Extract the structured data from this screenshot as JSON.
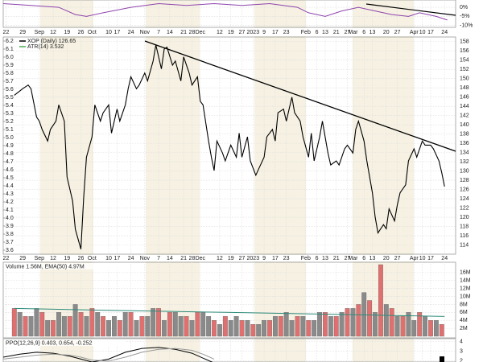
{
  "chart_data": [
    {
      "type": "line",
      "xlim": [
        0,
        163
      ],
      "ylim": [
        -11,
        4
      ],
      "yticks": [
        {
          "value": 0,
          "label": "0%"
        },
        {
          "value": -5,
          "label": "-5%"
        },
        {
          "value": -10,
          "label": "-10%"
        }
      ],
      "series": [
        {
          "color": "#8e44ad",
          "x": [
            0,
            10,
            20,
            26,
            30,
            36,
            46,
            56,
            66,
            76,
            86,
            96,
            106,
            110,
            116,
            122,
            128,
            134,
            140,
            146,
            150,
            156,
            160
          ],
          "values": [
            2,
            1,
            0,
            -4,
            -5,
            -3,
            0,
            2,
            1,
            2,
            1,
            2,
            0,
            -3,
            -5,
            -2,
            0,
            -2,
            -4,
            -5,
            -3,
            -5,
            -7
          ]
        }
      ]
    },
    {
      "type": "line",
      "xlim": [
        0,
        163
      ],
      "ylim": [
        112,
        159
      ],
      "y2lim": [
        3.55,
        6.25
      ],
      "xticks": [
        {
          "value": 1,
          "label": "22"
        },
        {
          "value": 7,
          "label": "29"
        },
        {
          "value": 13,
          "label": "Sep"
        },
        {
          "value": 18,
          "label": "12"
        },
        {
          "value": 23,
          "label": "19"
        },
        {
          "value": 28,
          "label": "26"
        },
        {
          "value": 32,
          "label": "Oct"
        },
        {
          "value": 38,
          "label": "10"
        },
        {
          "value": 41,
          "label": "17"
        },
        {
          "value": 46,
          "label": "24"
        },
        {
          "value": 51,
          "label": "Nov"
        },
        {
          "value": 56,
          "label": "7"
        },
        {
          "value": 60,
          "label": "14"
        },
        {
          "value": 65,
          "label": "21"
        },
        {
          "value": 68,
          "label": "28"
        },
        {
          "value": 71,
          "label": "Dec"
        },
        {
          "value": 78,
          "label": "12"
        },
        {
          "value": 82,
          "label": "19"
        },
        {
          "value": 86,
          "label": "27"
        },
        {
          "value": 90,
          "label": "2023"
        },
        {
          "value": 94,
          "label": "9"
        },
        {
          "value": 98,
          "label": "17"
        },
        {
          "value": 102,
          "label": "23"
        },
        {
          "value": 109,
          "label": "Feb"
        },
        {
          "value": 113,
          "label": "6"
        },
        {
          "value": 116,
          "label": "13"
        },
        {
          "value": 120,
          "label": "21"
        },
        {
          "value": 124,
          "label": "27"
        },
        {
          "value": 126,
          "label": "Mar"
        },
        {
          "value": 130,
          "label": "6"
        },
        {
          "value": 133,
          "label": "13"
        },
        {
          "value": 138,
          "label": "20"
        },
        {
          "value": 142,
          "label": "27"
        },
        {
          "value": 148,
          "label": "Apr"
        },
        {
          "value": 151,
          "label": "10"
        },
        {
          "value": 154,
          "label": "17"
        },
        {
          "value": 159,
          "label": "24"
        }
      ],
      "yticks": [
        114,
        116,
        118,
        120,
        122,
        124,
        126,
        128,
        130,
        132,
        134,
        136,
        138,
        140,
        142,
        144,
        146,
        148,
        150,
        152,
        154,
        156,
        158
      ],
      "y2ticks": [
        3.6,
        3.7,
        3.8,
        3.9,
        {
          "value": 4,
          "label": "4.0"
        },
        4.1,
        4.2,
        4.3,
        4.4,
        4.5,
        4.6,
        4.7,
        4.8,
        4.9,
        {
          "value": 5,
          "label": "5.0"
        },
        5.1,
        5.2,
        5.3,
        5.4,
        5.5,
        5.6,
        5.7,
        5.8,
        5.9,
        {
          "value": 6,
          "label": "6.0"
        },
        6.1,
        6.2
      ],
      "series": [
        {
          "name": "XOP (Daily) 126.65",
          "color": "#000000",
          "x": [
            4,
            7,
            9,
            10,
            12,
            13,
            14,
            16,
            17,
            19,
            20,
            22,
            23,
            25,
            26,
            28,
            29,
            30,
            32,
            33,
            35,
            36,
            38,
            39,
            41,
            42,
            44,
            45,
            46,
            48,
            49,
            51,
            52,
            54,
            55,
            57,
            58,
            59,
            61,
            62,
            64,
            65,
            67,
            68,
            70,
            71,
            72,
            74,
            75,
            76,
            77,
            79,
            80,
            82,
            84,
            85,
            86,
            88,
            89,
            91,
            92,
            94,
            95,
            97,
            98,
            99,
            101,
            102,
            104,
            105,
            107,
            108,
            110,
            111,
            112,
            114,
            115,
            117,
            118,
            120,
            121,
            123,
            124,
            126,
            127,
            128,
            130,
            131,
            133,
            134,
            135,
            137,
            138,
            139,
            141,
            142,
            143,
            145,
            146,
            148,
            149,
            151,
            152,
            154,
            155,
            157,
            158,
            159
          ],
          "values": [
            146.4,
            147.8,
            148.6,
            147.8,
            141.7,
            140.8,
            139,
            136.5,
            139,
            140.8,
            144.3,
            140.8,
            128.7,
            123.5,
            117.4,
            113.1,
            124.4,
            133,
            137.4,
            144.3,
            140.8,
            142.6,
            144.3,
            138.2,
            143.4,
            140.8,
            144.3,
            147.8,
            150.4,
            147.8,
            148.6,
            151.2,
            149.5,
            153.8,
            157.3,
            152.1,
            156.4,
            156.8,
            152.9,
            153.8,
            149.5,
            154.7,
            151.2,
            148.6,
            150.4,
            145.1,
            144.3,
            136.5,
            133,
            130.1,
            136.5,
            133.9,
            132.2,
            135.6,
            133,
            138.2,
            133,
            137.4,
            132.2,
            129.1,
            130.4,
            133,
            137.4,
            139,
            136.5,
            142.6,
            143.4,
            140.8,
            146,
            142.6,
            140.8,
            137.4,
            133,
            138.2,
            132.2,
            137.4,
            140.8,
            133.9,
            131.3,
            132.2,
            131.3,
            134.8,
            135.6,
            133.9,
            139,
            140.8,
            136.5,
            132.2,
            125.3,
            120.1,
            116.6,
            118.4,
            117.5,
            121.8,
            119.2,
            122.7,
            125.3,
            127,
            132.2,
            134.8,
            133,
            136.5,
            135.6,
            135.6,
            134.8,
            132.2,
            129.6,
            126.65
          ]
        },
        {
          "name": "ATR(14) 3.532",
          "color": "#4caf50",
          "axis": "y2",
          "x": [],
          "values": []
        }
      ]
    },
    {
      "type": "bar",
      "label": "Volume 1.56M, EMA(50) 4.97M",
      "xlim": [
        0,
        163
      ],
      "ylim": [
        -0.4,
        18.6
      ],
      "yticks": [
        {
          "value": 2,
          "label": "2M"
        },
        {
          "value": 4,
          "label": "4M"
        },
        {
          "value": 6,
          "label": "6M"
        },
        {
          "value": 8,
          "label": "8M"
        },
        {
          "value": 10,
          "label": "10M"
        },
        {
          "value": 12,
          "label": "12M"
        },
        {
          "value": 14,
          "label": "14M"
        },
        {
          "value": 16,
          "label": "16M"
        }
      ],
      "series": [
        {
          "color": "#e07070",
          "x": [
            4,
            8,
            14,
            18,
            24,
            28,
            32,
            36,
            42,
            46,
            50,
            56,
            60,
            66,
            70,
            76,
            80,
            86,
            90,
            96,
            100,
            106,
            110,
            116,
            120,
            124,
            128,
            132,
            136,
            140,
            144,
            150,
            154,
            158
          ],
          "values": [
            7,
            5,
            6,
            4,
            5,
            6,
            7,
            5,
            4,
            6,
            5,
            7,
            6,
            5,
            6,
            4,
            5,
            4,
            3,
            4,
            5,
            5,
            4,
            6,
            5,
            7,
            8,
            9,
            18,
            7,
            5,
            6,
            4,
            3
          ]
        },
        {
          "color": "#8a8a8a",
          "x": [
            6,
            10,
            12,
            16,
            20,
            22,
            26,
            30,
            34,
            38,
            40,
            44,
            48,
            52,
            54,
            58,
            62,
            64,
            68,
            72,
            74,
            78,
            82,
            84,
            88,
            92,
            94,
            98,
            102,
            104,
            108,
            112,
            114,
            118,
            122,
            126,
            130,
            134,
            138,
            142,
            146,
            148,
            152,
            156
          ],
          "values": [
            6,
            5,
            7,
            4,
            6,
            5,
            8,
            5,
            6,
            4,
            5,
            6,
            4,
            5,
            7,
            4,
            6,
            5,
            4,
            6,
            5,
            3,
            4,
            5,
            4,
            3,
            4,
            5,
            6,
            4,
            5,
            4,
            6,
            5,
            6,
            7,
            11,
            6,
            8,
            5,
            6,
            4,
            5,
            4
          ]
        },
        {
          "type": "line",
          "color": "#2e8b7a",
          "x": [
            4,
            40,
            80,
            120,
            159
          ],
          "values": [
            7,
            6.5,
            6,
            5.5,
            4.97
          ]
        }
      ]
    },
    {
      "type": "line",
      "label": "PPO(12,26,9) 0.403, 0.654, -0.252",
      "xlim": [
        0,
        163
      ],
      "ylim": [
        1.9,
        4.3
      ],
      "yticks": [
        2,
        3,
        4
      ],
      "series": [
        {
          "color": "#000000",
          "x": [
            0,
            6,
            12,
            18,
            24,
            28,
            32,
            38,
            44,
            50,
            56,
            62,
            68,
            72,
            76
          ],
          "values": [
            2.4,
            2.7,
            2.9,
            2.8,
            2.5,
            2.2,
            1.9,
            2.2,
            2.9,
            3.3,
            3.4,
            3.2,
            2.8,
            2.3,
            1.8
          ]
        },
        {
          "color": "#999999",
          "x": [
            0,
            6,
            12,
            18,
            24,
            28,
            32,
            38,
            44,
            50,
            56,
            62,
            68,
            72,
            76
          ],
          "values": [
            2.2,
            2.4,
            2.6,
            2.7,
            2.6,
            2.4,
            2.1,
            2,
            2.4,
            2.9,
            3.2,
            3.3,
            3.1,
            2.7,
            2.2
          ]
        }
      ]
    }
  ]
}
